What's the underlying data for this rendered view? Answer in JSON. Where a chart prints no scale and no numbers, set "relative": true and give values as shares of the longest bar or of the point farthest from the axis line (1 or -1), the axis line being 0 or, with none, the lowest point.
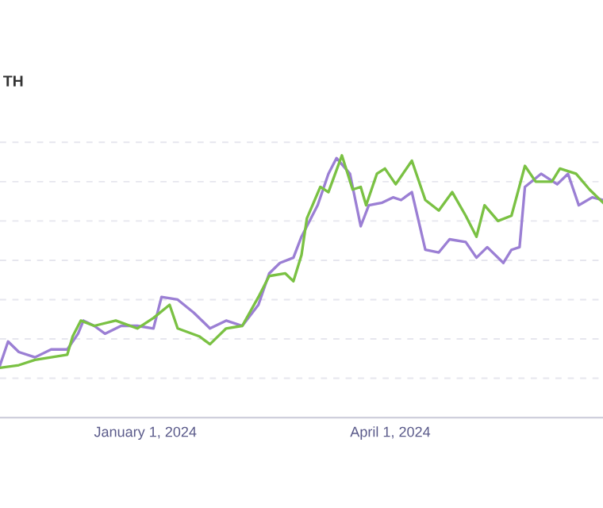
{
  "chart_data": {
    "type": "line",
    "title": "TH",
    "relative": true,
    "grid": "y",
    "line_style": "solid",
    "marker": "none",
    "xlim": [
      "2023-11-08",
      "2024-06-19"
    ],
    "xticks": [
      {
        "value": "2024-01-01",
        "label": "January 1, 2024"
      },
      {
        "value": "2024-04-01",
        "label": "April 1, 2024"
      }
    ],
    "series": [
      {
        "color": "#9b7fd4",
        "x": [
          "2023-11-08",
          "2023-11-11",
          "2023-11-15",
          "2023-11-21",
          "2023-11-27",
          "2023-12-03",
          "2023-12-07",
          "2023-12-09",
          "2023-12-13",
          "2023-12-17",
          "2023-12-23",
          "2023-12-29",
          "2024-01-04",
          "2024-01-07",
          "2024-01-13",
          "2024-01-19",
          "2024-01-25",
          "2024-01-31",
          "2024-02-06",
          "2024-02-12",
          "2024-02-16",
          "2024-02-20",
          "2024-02-25",
          "2024-02-28",
          "2024-03-05",
          "2024-03-09",
          "2024-03-12",
          "2024-03-17",
          "2024-03-19",
          "2024-03-21",
          "2024-03-24",
          "2024-03-29",
          "2024-04-02",
          "2024-04-05",
          "2024-04-09",
          "2024-04-14",
          "2024-04-19",
          "2024-04-23",
          "2024-04-29",
          "2024-05-03",
          "2024-05-07",
          "2024-05-13",
          "2024-05-16",
          "2024-05-19",
          "2024-05-21",
          "2024-05-27",
          "2024-06-02",
          "2024-06-06",
          "2024-06-10",
          "2024-06-15",
          "2024-06-19"
        ],
        "values": [
          0.2,
          0.29,
          0.25,
          0.23,
          0.26,
          0.26,
          0.32,
          0.37,
          0.35,
          0.32,
          0.35,
          0.35,
          0.34,
          0.46,
          0.45,
          0.4,
          0.34,
          0.37,
          0.35,
          0.43,
          0.55,
          0.59,
          0.61,
          0.69,
          0.81,
          0.93,
          0.99,
          0.93,
          0.83,
          0.73,
          0.81,
          0.82,
          0.84,
          0.83,
          0.86,
          0.64,
          0.63,
          0.68,
          0.67,
          0.61,
          0.65,
          0.59,
          0.64,
          0.65,
          0.88,
          0.93,
          0.89,
          0.93,
          0.81,
          0.84,
          0.83
        ]
      },
      {
        "color": "#7ac143",
        "x": [
          "2023-11-08",
          "2023-11-15",
          "2023-11-21",
          "2023-11-27",
          "2023-12-03",
          "2023-12-05",
          "2023-12-08",
          "2023-12-13",
          "2023-12-21",
          "2023-12-29",
          "2024-01-04",
          "2024-01-10",
          "2024-01-13",
          "2024-01-21",
          "2024-01-25",
          "2024-01-31",
          "2024-02-06",
          "2024-02-12",
          "2024-02-16",
          "2024-02-22",
          "2024-02-25",
          "2024-02-28",
          "2024-03-01",
          "2024-03-06",
          "2024-03-09",
          "2024-03-14",
          "2024-03-18",
          "2024-03-21",
          "2024-03-23",
          "2024-03-27",
          "2024-03-30",
          "2024-04-03",
          "2024-04-09",
          "2024-04-14",
          "2024-04-19",
          "2024-04-24",
          "2024-04-29",
          "2024-05-03",
          "2024-05-06",
          "2024-05-11",
          "2024-05-16",
          "2024-05-21",
          "2024-05-25",
          "2024-05-31",
          "2024-06-03",
          "2024-06-09",
          "2024-06-14",
          "2024-06-19"
        ],
        "values": [
          0.19,
          0.2,
          0.22,
          0.23,
          0.24,
          0.31,
          0.37,
          0.35,
          0.37,
          0.34,
          0.38,
          0.43,
          0.34,
          0.31,
          0.28,
          0.34,
          0.35,
          0.46,
          0.54,
          0.55,
          0.52,
          0.62,
          0.76,
          0.88,
          0.86,
          1.0,
          0.87,
          0.88,
          0.81,
          0.93,
          0.95,
          0.89,
          0.98,
          0.83,
          0.79,
          0.86,
          0.77,
          0.69,
          0.81,
          0.75,
          0.77,
          0.96,
          0.9,
          0.9,
          0.95,
          0.93,
          0.87,
          0.82
        ]
      }
    ]
  }
}
